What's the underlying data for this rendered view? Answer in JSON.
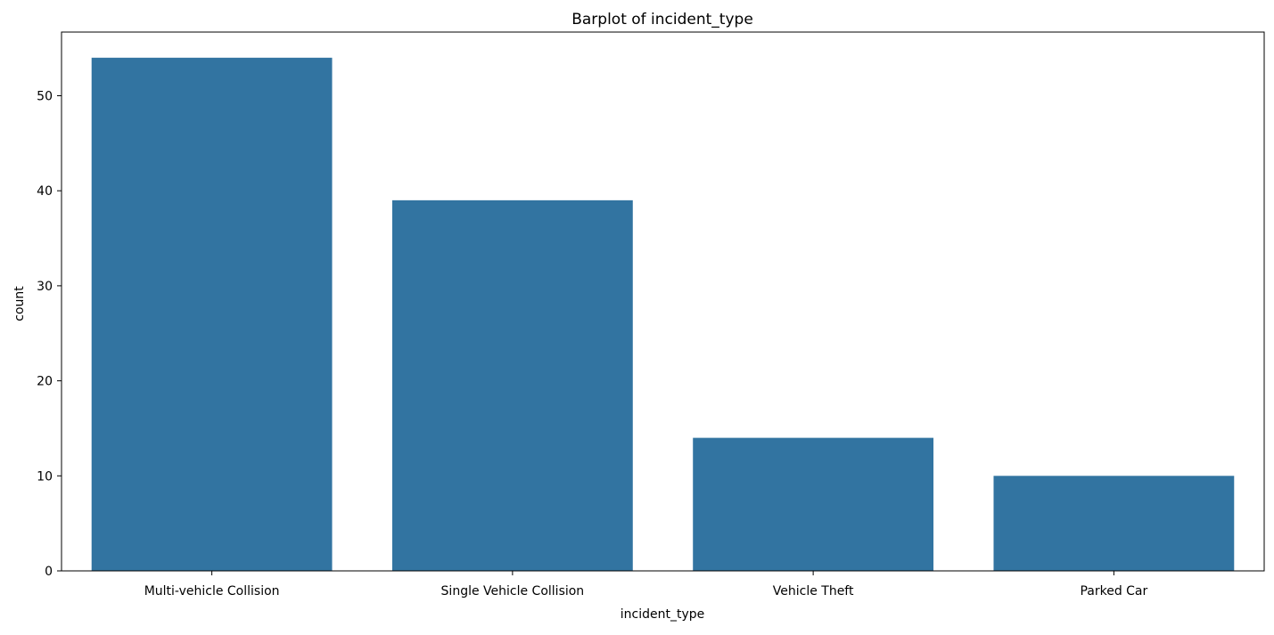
{
  "chart_data": {
    "type": "bar",
    "title": "Barplot of incident_type",
    "xlabel": "incident_type",
    "ylabel": "count",
    "categories": [
      "Multi-vehicle Collision",
      "Single Vehicle Collision",
      "Vehicle Theft",
      "Parked Car"
    ],
    "values": [
      54,
      39,
      14,
      10
    ],
    "ylim": [
      0,
      56.7
    ],
    "yticks": [
      0,
      10,
      20,
      30,
      40,
      50
    ],
    "grid": false,
    "bar_color": "#3274a1"
  }
}
